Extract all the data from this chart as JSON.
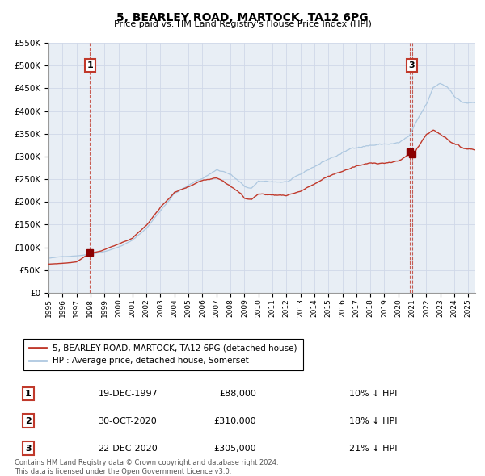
{
  "title": "5, BEARLEY ROAD, MARTOCK, TA12 6PG",
  "subtitle": "Price paid vs. HM Land Registry's House Price Index (HPI)",
  "ylim": [
    0,
    550000
  ],
  "yticks": [
    0,
    50000,
    100000,
    150000,
    200000,
    250000,
    300000,
    350000,
    400000,
    450000,
    500000,
    550000
  ],
  "ytick_labels": [
    "£0",
    "£50K",
    "£100K",
    "£150K",
    "£200K",
    "£250K",
    "£300K",
    "£350K",
    "£400K",
    "£450K",
    "£500K",
    "£550K"
  ],
  "xlim_start": 1995.0,
  "xlim_end": 2025.5,
  "sale_points": [
    {
      "year": 1997.96,
      "price": 88000,
      "label": "1"
    },
    {
      "year": 2020.83,
      "price": 310000,
      "label": "2"
    },
    {
      "year": 2020.97,
      "price": 305000,
      "label": "3"
    }
  ],
  "hpi_line_color": "#aec8e0",
  "property_line_color": "#c0392b",
  "sale_point_color": "#8b0000",
  "dashed_line_color": "#c0392b",
  "grid_color": "#d0d8e8",
  "bg_color": "#e8eef5",
  "legend_property": "5, BEARLEY ROAD, MARTOCK, TA12 6PG (detached house)",
  "legend_hpi": "HPI: Average price, detached house, Somerset",
  "table_rows": [
    {
      "num": "1",
      "date": "19-DEC-1997",
      "price": "£88,000",
      "hpi": "10% ↓ HPI"
    },
    {
      "num": "2",
      "date": "30-OCT-2020",
      "price": "£310,000",
      "hpi": "18% ↓ HPI"
    },
    {
      "num": "3",
      "date": "22-DEC-2020",
      "price": "£305,000",
      "hpi": "21% ↓ HPI"
    }
  ],
  "footer": "Contains HM Land Registry data © Crown copyright and database right 2024.\nThis data is licensed under the Open Government Licence v3.0."
}
